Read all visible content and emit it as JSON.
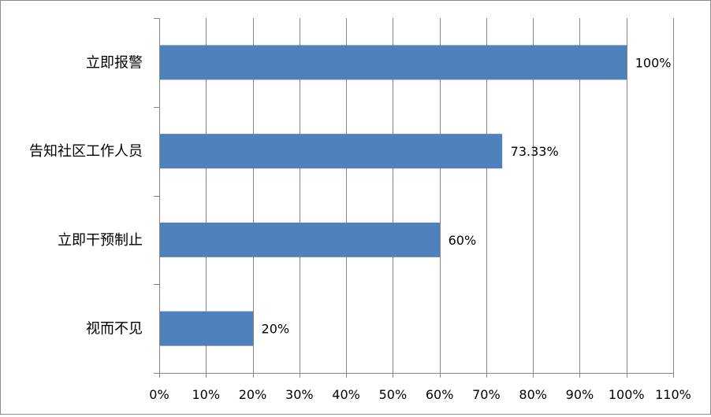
{
  "chart_data": {
    "type": "bar",
    "orientation": "horizontal",
    "categories": [
      "立即报警",
      "告知社区工作人员",
      "立即干预制止",
      "视而不见"
    ],
    "values": [
      100,
      73.33,
      60,
      20
    ],
    "data_labels": [
      "100%",
      "73.33%",
      "60%",
      "20%"
    ],
    "x_ticks": [
      "0%",
      "10%",
      "20%",
      "30%",
      "40%",
      "50%",
      "60%",
      "70%",
      "80%",
      "90%",
      "100%",
      "110%"
    ],
    "xlim": [
      0,
      110
    ],
    "grid": "vertical",
    "legend": "none",
    "bar_color": "#4f81bd",
    "grid_color": "#868686"
  }
}
